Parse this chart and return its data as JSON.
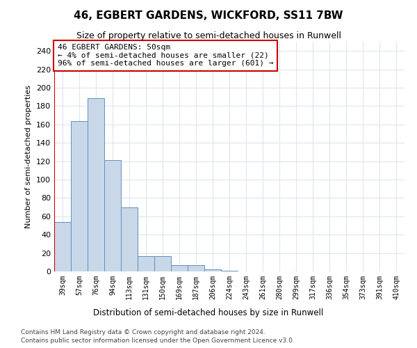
{
  "title": "46, EGBERT GARDENS, WICKFORD, SS11 7BW",
  "subtitle": "Size of property relative to semi-detached houses in Runwell",
  "xlabel": "Distribution of semi-detached houses by size in Runwell",
  "ylabel": "Number of semi-detached properties",
  "categories": [
    "39sqm",
    "57sqm",
    "76sqm",
    "94sqm",
    "113sqm",
    "131sqm",
    "150sqm",
    "169sqm",
    "187sqm",
    "206sqm",
    "224sqm",
    "243sqm",
    "261sqm",
    "280sqm",
    "299sqm",
    "317sqm",
    "336sqm",
    "354sqm",
    "373sqm",
    "391sqm",
    "410sqm"
  ],
  "values": [
    54,
    164,
    189,
    121,
    70,
    17,
    17,
    7,
    7,
    2,
    1,
    0,
    0,
    0,
    0,
    0,
    0,
    0,
    0,
    0,
    0
  ],
  "bar_color": "#c8d8e8",
  "bar_edge_color": "#6090c0",
  "highlight_color": "#cc0000",
  "annotation_text": "46 EGBERT GARDENS: 50sqm\n← 4% of semi-detached houses are smaller (22)\n96% of semi-detached houses are larger (601) →",
  "annotation_box_color": "#ffffff",
  "annotation_box_edge": "#cc0000",
  "ylim": [
    0,
    250
  ],
  "yticks": [
    0,
    20,
    40,
    60,
    80,
    100,
    120,
    140,
    160,
    180,
    200,
    220,
    240
  ],
  "footer_line1": "Contains HM Land Registry data © Crown copyright and database right 2024.",
  "footer_line2": "Contains public sector information licensed under the Open Government Licence v3.0.",
  "background_color": "#ffffff",
  "grid_color": "#dce6f0"
}
